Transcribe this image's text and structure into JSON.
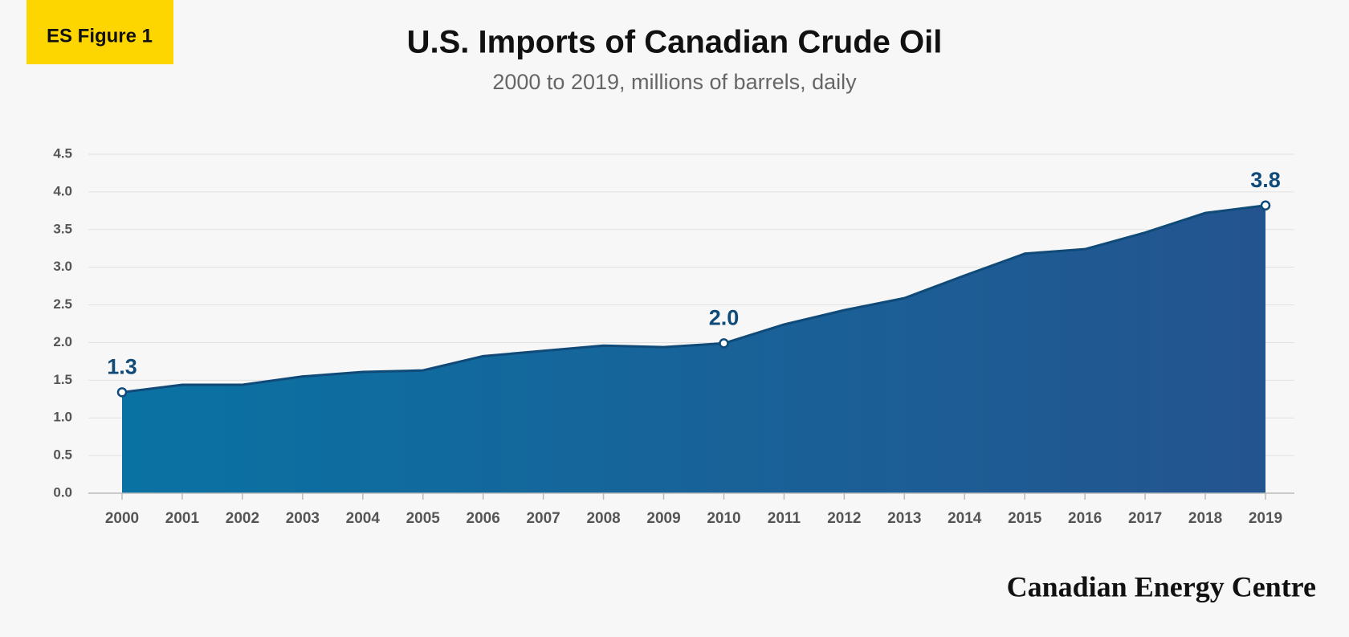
{
  "chart_data": {
    "type": "area",
    "badge": "ES Figure 1",
    "title": "U.S. Imports of Canadian Crude Oil",
    "subtitle": "2000 to 2019, millions of barrels, daily",
    "credit": "Canadian Energy Centre",
    "categories": [
      "2000",
      "2001",
      "2002",
      "2003",
      "2004",
      "2005",
      "2006",
      "2007",
      "2008",
      "2009",
      "2010",
      "2011",
      "2012",
      "2013",
      "2014",
      "2015",
      "2016",
      "2017",
      "2018",
      "2019"
    ],
    "values": [
      1.34,
      1.44,
      1.44,
      1.55,
      1.61,
      1.63,
      1.82,
      1.89,
      1.96,
      1.94,
      1.99,
      2.24,
      2.43,
      2.59,
      2.89,
      3.18,
      3.24,
      3.46,
      3.72,
      3.82
    ],
    "value_labels": [
      "1.3",
      null,
      null,
      null,
      null,
      null,
      null,
      null,
      null,
      null,
      "2.0",
      null,
      null,
      null,
      null,
      null,
      null,
      null,
      null,
      "3.8"
    ],
    "colors": [
      "#0a72a3",
      "#24548f"
    ],
    "ylim": [
      0,
      4.5
    ],
    "yticks": [
      {
        "value": 0,
        "label": "0.0"
      },
      0.5,
      {
        "value": 1,
        "label": "1.0"
      },
      1.5,
      {
        "value": 2,
        "label": "2.0"
      },
      2.5,
      {
        "value": 3,
        "label": "3.0"
      },
      3.5,
      {
        "value": 4,
        "label": "4.0"
      },
      4.5
    ],
    "grid": true
  }
}
